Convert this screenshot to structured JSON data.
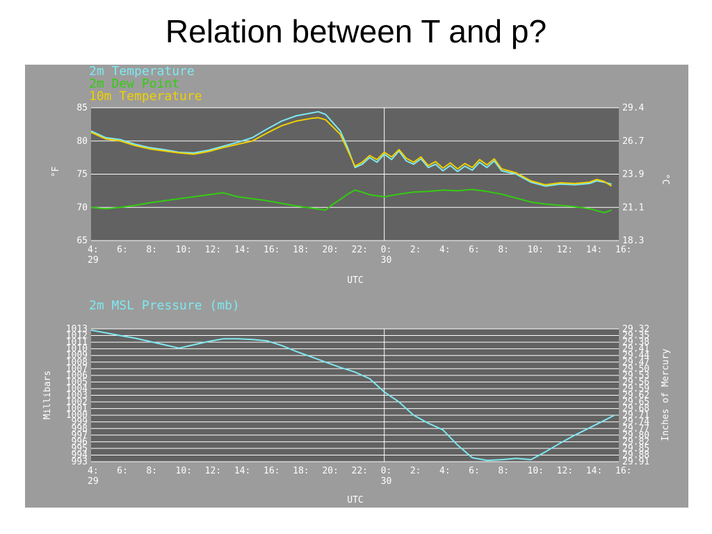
{
  "slide_title": "Relation between T and p?",
  "chart_data": [
    {
      "type": "line",
      "legend": [
        "2m Temperature",
        "2m Dew Point",
        "10m Temperature"
      ],
      "left_axis_label": "°F",
      "right_axis_label": "°C",
      "xlabel": "UTC",
      "xlim": [
        4,
        40
      ],
      "ylim": [
        65,
        85
      ],
      "y_ticks_left": [
        "65",
        "70",
        "75",
        "80",
        "85"
      ],
      "y_ticks_right": [
        "18.3",
        "21.1",
        "23.9",
        "26.7",
        "29.4"
      ],
      "x_ticks": [
        {
          "x": 4,
          "label": "4:",
          "sub": "29"
        },
        {
          "x": 6,
          "label": "6:"
        },
        {
          "x": 8,
          "label": "8:"
        },
        {
          "x": 10,
          "label": "10:"
        },
        {
          "x": 12,
          "label": "12:"
        },
        {
          "x": 14,
          "label": "14:"
        },
        {
          "x": 16,
          "label": "16:"
        },
        {
          "x": 18,
          "label": "18:"
        },
        {
          "x": 20,
          "label": "20:"
        },
        {
          "x": 22,
          "label": "22:"
        },
        {
          "x": 24,
          "label": "0:",
          "sub": "30"
        },
        {
          "x": 26,
          "label": "2:"
        },
        {
          "x": 28,
          "label": "4:"
        },
        {
          "x": 30,
          "label": "6:"
        },
        {
          "x": 32,
          "label": "8:"
        },
        {
          "x": 34,
          "label": "10:"
        },
        {
          "x": 36,
          "label": "12:"
        },
        {
          "x": 38,
          "label": "14:"
        },
        {
          "x": 40,
          "label": "16:"
        }
      ],
      "grid": true,
      "colors": {
        "2m Temperature": "#7fe8f0",
        "2m Dew Point": "#33cc11",
        "10m Temperature": "#f0d000",
        "plot_bg": "#626262",
        "grid": "#ffffff"
      },
      "series": [
        {
          "name": "2m Temperature",
          "x": [
            4,
            5,
            6,
            7,
            8,
            9,
            10,
            11,
            12,
            13,
            14,
            15,
            16,
            17,
            18,
            19,
            19.5,
            20,
            21,
            21.5,
            22,
            22.5,
            23,
            23.5,
            24,
            24.5,
            25,
            25.5,
            26,
            26.5,
            27,
            27.5,
            28,
            28.5,
            29,
            29.5,
            30,
            30.5,
            31,
            31.5,
            32,
            33,
            34,
            35,
            36,
            37,
            38,
            38.5,
            39,
            39.5
          ],
          "y": [
            81.5,
            80.5,
            80.2,
            79.5,
            79.0,
            78.7,
            78.3,
            78.2,
            78.6,
            79.2,
            79.8,
            80.5,
            81.8,
            83.0,
            83.8,
            84.2,
            84.4,
            84.0,
            81.5,
            79.0,
            76.0,
            76.5,
            77.5,
            76.8,
            78.0,
            77.2,
            78.5,
            77.0,
            76.5,
            77.3,
            76.0,
            76.5,
            75.5,
            76.3,
            75.4,
            76.2,
            75.6,
            76.8,
            76.0,
            77.0,
            75.5,
            75.0,
            73.8,
            73.2,
            73.5,
            73.4,
            73.6,
            74.0,
            73.8,
            73.5
          ]
        },
        {
          "name": "2m Dew Point",
          "x": [
            4,
            5,
            6,
            7,
            8,
            9,
            10,
            11,
            12,
            13,
            14,
            15,
            16,
            17,
            18,
            19,
            20,
            20.5,
            21,
            21.5,
            22,
            22.5,
            23,
            24,
            25,
            26,
            27,
            28,
            29,
            30,
            31,
            32,
            33,
            34,
            35,
            36,
            37,
            38,
            38.5,
            39,
            39.5
          ],
          "y": [
            70.0,
            69.8,
            70.0,
            70.3,
            70.7,
            71.0,
            71.3,
            71.6,
            71.9,
            72.2,
            71.6,
            71.3,
            71.0,
            70.6,
            70.2,
            69.9,
            69.6,
            70.5,
            71.2,
            72.0,
            72.6,
            72.3,
            71.9,
            71.6,
            72.0,
            72.3,
            72.4,
            72.6,
            72.5,
            72.7,
            72.4,
            72.0,
            71.4,
            70.8,
            70.5,
            70.3,
            70.1,
            69.8,
            69.5,
            69.2,
            69.6
          ]
        },
        {
          "name": "10m Temperature",
          "x": [
            4,
            5,
            6,
            7,
            8,
            9,
            10,
            11,
            12,
            13,
            14,
            15,
            16,
            17,
            18,
            19,
            19.5,
            20,
            21,
            21.5,
            22,
            22.5,
            23,
            23.5,
            24,
            24.5,
            25,
            25.5,
            26,
            26.5,
            27,
            27.5,
            28,
            28.5,
            29,
            29.5,
            30,
            30.5,
            31,
            31.5,
            32,
            33,
            34,
            35,
            36,
            37,
            38,
            38.5,
            39,
            39.5
          ],
          "y": [
            81.3,
            80.3,
            80.0,
            79.3,
            78.8,
            78.5,
            78.2,
            78.0,
            78.4,
            79.0,
            79.5,
            80.0,
            81.2,
            82.3,
            83.0,
            83.4,
            83.5,
            83.2,
            81.0,
            78.6,
            76.2,
            76.8,
            77.8,
            77.2,
            78.3,
            77.6,
            78.7,
            77.4,
            76.8,
            77.6,
            76.3,
            76.9,
            75.9,
            76.7,
            75.8,
            76.6,
            76.0,
            77.2,
            76.4,
            77.3,
            75.8,
            75.2,
            74.0,
            73.4,
            73.7,
            73.6,
            73.8,
            74.2,
            73.9,
            73.2
          ]
        }
      ]
    },
    {
      "type": "line",
      "title": "2m MSL Pressure (mb)",
      "ylabel": "Millibars",
      "right_axis_label": "Inches of Mercury",
      "xlabel": "UTC",
      "xlim": [
        4,
        40
      ],
      "ylim": [
        993,
        1013
      ],
      "y_ticks_left": [
        "993",
        "994",
        "995",
        "996",
        "997",
        "998",
        "999",
        "1000",
        "1001",
        "1002",
        "1003",
        "1004",
        "1005",
        "1006",
        "1007",
        "1008",
        "1009",
        "1010",
        "1011",
        "1012",
        "1013"
      ],
      "y_ticks_right": [
        "29.91",
        "29.88",
        "29.85",
        "29.82",
        "29.80",
        "29.77",
        "29.74",
        "29.71",
        "29.68",
        "29.65",
        "29.62",
        "29.59",
        "29.56",
        "29.53",
        "29.50",
        "29.47",
        "29.44",
        "29.41",
        "29.38",
        "29.35",
        "29.32"
      ],
      "x_ticks": [
        {
          "x": 4,
          "label": "4:",
          "sub": "29"
        },
        {
          "x": 6,
          "label": "6:"
        },
        {
          "x": 8,
          "label": "8:"
        },
        {
          "x": 10,
          "label": "10:"
        },
        {
          "x": 12,
          "label": "12:"
        },
        {
          "x": 14,
          "label": "14:"
        },
        {
          "x": 16,
          "label": "16:"
        },
        {
          "x": 18,
          "label": "18:"
        },
        {
          "x": 20,
          "label": "20:"
        },
        {
          "x": 22,
          "label": "22:"
        },
        {
          "x": 24,
          "label": "0:",
          "sub": "30"
        },
        {
          "x": 26,
          "label": "2:"
        },
        {
          "x": 28,
          "label": "4:"
        },
        {
          "x": 30,
          "label": "6:"
        },
        {
          "x": 32,
          "label": "8:"
        },
        {
          "x": 34,
          "label": "10:"
        },
        {
          "x": 36,
          "label": "12:"
        },
        {
          "x": 38,
          "label": "14:"
        },
        {
          "x": 40,
          "label": "16:"
        }
      ],
      "grid": true,
      "colors": {
        "line": "#7fe8f0",
        "plot_bg": "#626262",
        "grid": "#ffffff",
        "title": "#7fe8f0"
      },
      "series": [
        {
          "name": "2m MSL Pressure",
          "x": [
            4,
            5,
            6,
            7,
            8,
            9,
            10,
            11,
            12,
            13,
            14,
            15,
            16,
            17,
            18,
            19,
            20,
            21,
            22,
            23,
            24,
            25,
            26,
            27,
            28,
            29,
            30,
            31,
            32,
            33,
            34,
            35,
            36,
            37,
            38,
            39,
            39.7
          ],
          "y": [
            1012.8,
            1012.4,
            1012.0,
            1011.6,
            1011.1,
            1010.6,
            1010.1,
            1010.6,
            1011.1,
            1011.5,
            1011.5,
            1011.4,
            1011.2,
            1010.5,
            1009.6,
            1008.8,
            1008.0,
            1007.2,
            1006.5,
            1005.5,
            1003.5,
            1002.0,
            1000.0,
            998.8,
            997.8,
            995.5,
            993.6,
            993.2,
            993.3,
            993.5,
            993.3,
            994.5,
            995.8,
            997.0,
            998.1,
            999.2,
            1000.0
          ]
        }
      ]
    }
  ]
}
